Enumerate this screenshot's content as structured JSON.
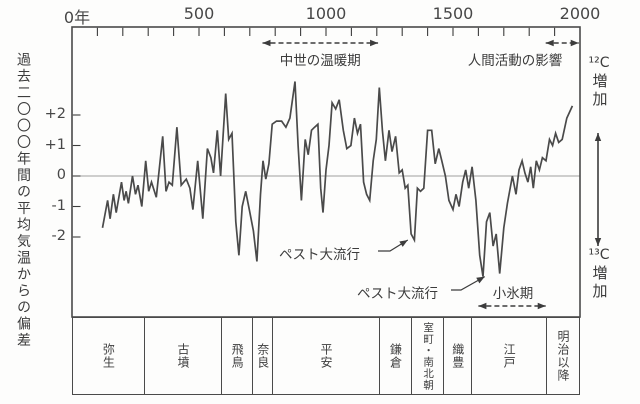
{
  "figure": {
    "bg": "#fdfdfc",
    "ink": "#3c3c3c",
    "curve_color": "#4a4a4a",
    "frame_color": "#4a4a4a",
    "zero_line_color": "#9e9e9e"
  },
  "x_axis": {
    "tick_labels": [
      "0年",
      "500",
      "1000",
      "1500",
      "2000"
    ],
    "tick_years": [
      0,
      500,
      1000,
      1500,
      2000
    ],
    "minor_step_years": 100
  },
  "y_axis": {
    "title": "過去二〇〇〇年間の平均気温からの偏差",
    "tick_labels": [
      "+2",
      "+1",
      "0",
      "-1",
      "-2"
    ],
    "tick_values": [
      2,
      1,
      0,
      -1,
      -2
    ]
  },
  "right_axis": {
    "top_symbol": "¹²C",
    "top_text": "増加",
    "bottom_symbol": "¹³C",
    "bottom_text": "増加"
  },
  "annotations": {
    "medieval_warm": {
      "label": "中世の温暖期",
      "from_year": 750,
      "to_year": 1205
    },
    "human_activity": {
      "label": "人間活動の影響",
      "from_year": 1865,
      "to_year": 1995
    },
    "little_ice_age": {
      "label": "小氷期",
      "from_year": 1600,
      "to_year": 1865
    },
    "plague_1": {
      "label": "ペスト大流行",
      "target_year": 1330,
      "target_value": -2.0
    },
    "plague_2": {
      "label": "ペスト大流行",
      "target_year": 1633,
      "target_value": -3.2
    }
  },
  "era_bar": {
    "eras": [
      {
        "label": "弥生",
        "width_pct": 14.2
      },
      {
        "label": "古墳",
        "width_pct": 15.3
      },
      {
        "label": "飛鳥",
        "width_pct": 6.1
      },
      {
        "label": "奈良",
        "width_pct": 4.0
      },
      {
        "label": "平安",
        "width_pct": 21.0
      },
      {
        "label": "鎌倉",
        "width_pct": 6.5
      },
      {
        "label": "室町・南北朝",
        "width_pct": 6.3
      },
      {
        "label": "織豊",
        "width_pct": 5.5
      },
      {
        "label": "江戸",
        "width_pct": 14.8
      },
      {
        "label": "明治以降",
        "width_pct": 6.3
      }
    ]
  },
  "chart_data": {
    "type": "line",
    "title": "",
    "xlabel": "",
    "ylabel": "過去二〇〇〇年間の平均気温からの偏差",
    "xlim": [
      0,
      2000
    ],
    "ylim": [
      -4.6,
      4.9
    ],
    "grid": false,
    "legend": false,
    "x": [
      120,
      140,
      150,
      163,
      174,
      195,
      205,
      213,
      222,
      238,
      250,
      260,
      275,
      290,
      302,
      313,
      332,
      357,
      370,
      382,
      395,
      413,
      430,
      450,
      464,
      476,
      495,
      515,
      533,
      547,
      557,
      572,
      585,
      605,
      617,
      630,
      645,
      657,
      670,
      684,
      698,
      714,
      728,
      742,
      752,
      763,
      775,
      788,
      805,
      825,
      842,
      858,
      878,
      890,
      903,
      918,
      930,
      943,
      955,
      968,
      979,
      988,
      1000,
      1012,
      1024,
      1038,
      1052,
      1068,
      1082,
      1098,
      1112,
      1124,
      1136,
      1148,
      1160,
      1172,
      1186,
      1198,
      1210,
      1222,
      1234,
      1248,
      1260,
      1274,
      1288,
      1300,
      1312,
      1322,
      1335,
      1348,
      1360,
      1372,
      1385,
      1400,
      1416,
      1430,
      1444,
      1456,
      1470,
      1484,
      1500,
      1512,
      1524,
      1538,
      1550,
      1562,
      1575,
      1590,
      1605,
      1618,
      1632,
      1645,
      1658,
      1670,
      1684,
      1700,
      1714,
      1734,
      1748,
      1760,
      1772,
      1783,
      1795,
      1806,
      1816,
      1828,
      1840,
      1852,
      1866,
      1880,
      1892,
      1904,
      1916,
      1930,
      1948,
      1970
    ],
    "y": [
      -1.7,
      -0.8,
      -1.4,
      -0.6,
      -1.2,
      -0.2,
      -0.8,
      -0.5,
      -0.9,
      0.0,
      -0.6,
      -0.3,
      -1.0,
      0.5,
      -0.5,
      -0.2,
      -0.7,
      1.3,
      -0.5,
      -0.2,
      -0.3,
      1.6,
      -0.3,
      -0.1,
      -0.4,
      -1.1,
      0.5,
      -1.4,
      0.9,
      0.6,
      0.1,
      1.5,
      0.0,
      2.7,
      1.2,
      1.4,
      -1.5,
      -2.6,
      -1.0,
      -0.5,
      -1.1,
      -1.8,
      -2.8,
      -0.6,
      0.5,
      -0.1,
      0.4,
      1.7,
      1.8,
      1.8,
      1.6,
      1.9,
      3.1,
      1.0,
      -0.8,
      1.2,
      0.7,
      1.5,
      1.6,
      1.7,
      -0.4,
      -1.2,
      0.2,
      1.0,
      2.4,
      2.2,
      2.5,
      1.5,
      0.9,
      1.0,
      1.9,
      1.4,
      1.7,
      -0.2,
      -0.6,
      -0.8,
      0.5,
      1.2,
      2.9,
      1.5,
      0.5,
      1.5,
      0.8,
      1.3,
      0.1,
      0.2,
      -0.4,
      -0.3,
      -1.9,
      -2.1,
      -0.4,
      -0.5,
      -0.4,
      1.5,
      1.5,
      0.4,
      0.9,
      0.5,
      0.0,
      -0.8,
      -1.1,
      -0.6,
      -1.0,
      -0.2,
      0.2,
      -0.4,
      0.3,
      -0.8,
      -2.6,
      -3.3,
      -1.5,
      -1.2,
      -2.3,
      -1.9,
      -3.2,
      -1.7,
      -0.9,
      0.0,
      -0.6,
      0.2,
      0.5,
      0.1,
      -0.2,
      0.3,
      -0.4,
      0.5,
      0.2,
      0.6,
      0.5,
      1.2,
      1.0,
      1.4,
      1.1,
      1.2,
      1.9,
      2.3
    ]
  }
}
